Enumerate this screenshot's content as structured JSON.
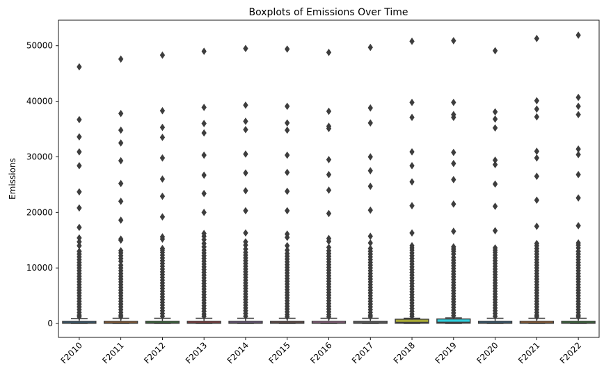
{
  "chart_data": {
    "type": "box",
    "title": "Boxplots of Emissions Over Time",
    "xlabel": "",
    "ylabel": "Emissions",
    "ylim": [
      -2500,
      54600
    ],
    "yticks": [
      0,
      10000,
      20000,
      30000,
      40000,
      50000
    ],
    "categories": [
      "F2010",
      "F2011",
      "F2012",
      "F2013",
      "F2014",
      "F2015",
      "F2016",
      "F2017",
      "F2018",
      "F2019",
      "F2020",
      "F2021",
      "F2022"
    ],
    "grid": false,
    "colors": [
      "#3274a1",
      "#e1812c",
      "#3a923a",
      "#c03d3e",
      "#9372b2",
      "#845b53",
      "#d684bd",
      "#7f7f7f",
      "#a9aa35",
      "#2ed0de",
      "#3274a1",
      "#e1812c",
      "#3a923a"
    ],
    "boxes": [
      {
        "q1": 40,
        "median": 120,
        "q3": 390,
        "whisker_low": 0,
        "whisker_high": 900,
        "outliers": [
          46200,
          36700,
          33600,
          30900,
          28400,
          23700,
          20800,
          17300,
          15400,
          14700,
          14000,
          13000,
          12500,
          12000,
          11500,
          11000,
          10500,
          10000,
          9500,
          9000,
          8500,
          8000,
          7500,
          7000,
          6500,
          6000,
          5500,
          5000,
          4500,
          4000,
          3500,
          3000,
          2500,
          2000,
          1500,
          1200
        ]
      },
      {
        "q1": 40,
        "median": 120,
        "q3": 390,
        "whisker_low": 0,
        "whisker_high": 950,
        "outliers": [
          47600,
          37800,
          34800,
          32500,
          29300,
          25200,
          22000,
          18600,
          15200,
          15000,
          13100,
          12700,
          12200,
          11700,
          11200,
          10500,
          10000,
          9500,
          9000,
          8500,
          8000,
          7500,
          7000,
          6500,
          6000,
          5500,
          5000,
          4500,
          4000,
          3500,
          3000,
          2500,
          2000,
          1500,
          1200
        ]
      },
      {
        "q1": 40,
        "median": 120,
        "q3": 400,
        "whisker_low": 0,
        "whisker_high": 950,
        "outliers": [
          48300,
          38300,
          35300,
          33500,
          29800,
          26000,
          22900,
          19200,
          15600,
          15200,
          13500,
          13200,
          12800,
          12300,
          11800,
          11300,
          10800,
          10300,
          9800,
          9300,
          8800,
          8300,
          7800,
          7300,
          6800,
          6300,
          5800,
          5300,
          4800,
          4300,
          3800,
          3300,
          2800,
          2300,
          1800,
          1300
        ]
      },
      {
        "q1": 40,
        "median": 120,
        "q3": 400,
        "whisker_low": 0,
        "whisker_high": 950,
        "outliers": [
          49000,
          38900,
          36000,
          34300,
          30300,
          26700,
          23400,
          20000,
          16200,
          15700,
          15100,
          14400,
          13800,
          13200,
          12700,
          12200,
          11700,
          11200,
          10700,
          10200,
          9700,
          9200,
          8700,
          8200,
          7700,
          7200,
          6700,
          6200,
          5700,
          5200,
          4700,
          4200,
          3700,
          3200,
          2700,
          2200,
          1700,
          1300
        ]
      },
      {
        "q1": 40,
        "median": 120,
        "q3": 400,
        "whisker_low": 0,
        "whisker_high": 950,
        "outliers": [
          49500,
          39300,
          36400,
          34900,
          30500,
          27100,
          23900,
          20300,
          16300,
          14700,
          14100,
          13400,
          12800,
          12300,
          11800,
          11300,
          10800,
          10300,
          9800,
          9300,
          8800,
          8300,
          7800,
          7300,
          6800,
          6300,
          5800,
          5300,
          4800,
          4300,
          3800,
          3300,
          2800,
          2300,
          1800,
          1300
        ]
      },
      {
        "q1": 40,
        "median": 120,
        "q3": 400,
        "whisker_low": 0,
        "whisker_high": 950,
        "outliers": [
          49400,
          39100,
          36100,
          34800,
          30300,
          27200,
          23800,
          20300,
          16100,
          15500,
          14000,
          13200,
          12600,
          12100,
          11600,
          11100,
          10600,
          10100,
          9600,
          9100,
          8600,
          8100,
          7600,
          7100,
          6600,
          6100,
          5600,
          5100,
          4600,
          4100,
          3600,
          3100,
          2600,
          2100,
          1600,
          1200
        ]
      },
      {
        "q1": 40,
        "median": 120,
        "q3": 400,
        "whisker_low": 0,
        "whisker_high": 950,
        "outliers": [
          48800,
          38200,
          35500,
          35100,
          29500,
          26800,
          24000,
          19800,
          15300,
          14800,
          13700,
          13100,
          12600,
          12100,
          11600,
          11100,
          10600,
          10100,
          9600,
          9100,
          8600,
          8100,
          7600,
          7100,
          6600,
          6100,
          5600,
          5100,
          4600,
          4100,
          3600,
          3100,
          2600,
          2100,
          1600,
          1200
        ]
      },
      {
        "q1": 40,
        "median": 120,
        "q3": 400,
        "whisker_low": 0,
        "whisker_high": 950,
        "outliers": [
          49700,
          38800,
          36100,
          30000,
          27500,
          24700,
          20400,
          15700,
          14500,
          13500,
          13000,
          12500,
          12000,
          11500,
          11000,
          10500,
          10000,
          9500,
          9000,
          8500,
          8000,
          7500,
          7000,
          6500,
          6000,
          5500,
          5000,
          4500,
          4000,
          3500,
          3000,
          2500,
          2000,
          1500,
          1200
        ]
      },
      {
        "q1": 50,
        "median": 200,
        "q3": 780,
        "whisker_low": 0,
        "whisker_high": 950,
        "outliers": [
          50800,
          39800,
          37100,
          30900,
          28400,
          25500,
          21200,
          16300,
          14000,
          13600,
          13200,
          12700,
          12200,
          11700,
          11200,
          10700,
          10200,
          9700,
          9200,
          8700,
          8200,
          7700,
          7200,
          6700,
          6200,
          5700,
          5200,
          4700,
          4200,
          3700,
          3200,
          2700,
          2200,
          1700,
          1300
        ]
      },
      {
        "q1": 60,
        "median": 230,
        "q3": 820,
        "whisker_low": 0,
        "whisker_high": 1000,
        "outliers": [
          50900,
          39800,
          37600,
          37100,
          30800,
          28800,
          25900,
          21500,
          16600,
          13800,
          13400,
          13000,
          12500,
          11900,
          11400,
          10900,
          10400,
          9900,
          9400,
          8900,
          8400,
          7900,
          7400,
          6900,
          6400,
          5900,
          5400,
          4900,
          4400,
          3900,
          3400,
          2900,
          2400,
          1900,
          1400
        ]
      },
      {
        "q1": 40,
        "median": 120,
        "q3": 400,
        "whisker_low": 0,
        "whisker_high": 950,
        "outliers": [
          49100,
          38100,
          36800,
          35200,
          29400,
          28600,
          25100,
          21100,
          16700,
          13600,
          13200,
          12800,
          12300,
          11800,
          11300,
          10800,
          10300,
          9800,
          9300,
          8800,
          8300,
          7800,
          7300,
          6800,
          6300,
          5800,
          5300,
          4800,
          4300,
          3800,
          3300,
          2800,
          2300,
          1800,
          1300
        ]
      },
      {
        "q1": 40,
        "median": 120,
        "q3": 400,
        "whisker_low": 0,
        "whisker_high": 950,
        "outliers": [
          51300,
          40100,
          38600,
          37200,
          31000,
          29800,
          26500,
          22200,
          17500,
          14400,
          14000,
          13500,
          13000,
          12500,
          12000,
          11500,
          11000,
          10500,
          10000,
          9500,
          9000,
          8500,
          8000,
          7500,
          7000,
          6500,
          6000,
          5500,
          5000,
          4500,
          4000,
          3500,
          3000,
          2500,
          2000,
          1500,
          1200
        ]
      },
      {
        "q1": 40,
        "median": 120,
        "q3": 400,
        "whisker_low": 0,
        "whisker_high": 950,
        "outliers": [
          51900,
          40700,
          39100,
          37600,
          31400,
          30400,
          26800,
          22600,
          17600,
          14500,
          14100,
          13600,
          13000,
          12500,
          12000,
          11500,
          11000,
          10500,
          10000,
          9500,
          9000,
          8500,
          8000,
          7500,
          7000,
          6500,
          6000,
          5500,
          5000,
          4500,
          4000,
          3500,
          3000,
          2500,
          2000,
          1500,
          1200
        ]
      }
    ]
  }
}
